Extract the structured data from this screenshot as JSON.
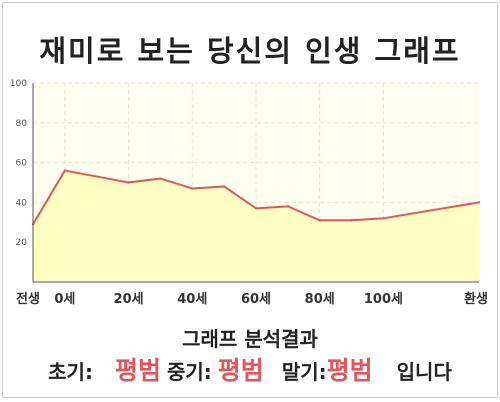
{
  "title": "재미로 보는 당신의 인생 그래프",
  "chart_data": {
    "type": "area",
    "x_labels": [
      "전생",
      "0세",
      "20세",
      "40세",
      "60세",
      "80세",
      "100세",
      "환생"
    ],
    "ylim": [
      0,
      100
    ],
    "y_ticks": [
      20,
      40,
      60,
      80,
      100
    ],
    "grid": true,
    "line_color": "#e0565b",
    "fill_color": "#ffffc4",
    "points": [
      {
        "x": "전생",
        "y": 29
      },
      {
        "x": "0세",
        "y": 56
      },
      {
        "x": "20세",
        "y": 50
      },
      {
        "x": "30세",
        "y": 52
      },
      {
        "x": "40세",
        "y": 47
      },
      {
        "x": "50세",
        "y": 48
      },
      {
        "x": "60세",
        "y": 37
      },
      {
        "x": "70세",
        "y": 38
      },
      {
        "x": "80세",
        "y": 31
      },
      {
        "x": "90세",
        "y": 31
      },
      {
        "x": "100세",
        "y": 32
      },
      {
        "x": "환생",
        "y": 40
      }
    ]
  },
  "summary": {
    "heading": "그래프 분석결과",
    "early_label": "초기:",
    "early_value": "평범",
    "middle_label": "중기:",
    "middle_value": "평범",
    "late_label": "말기:",
    "late_value": "평범",
    "ending": "입니다"
  },
  "colors": {
    "accent": "#e0565b",
    "plot_background": "#fffff0",
    "grid": "#e6e6d2"
  }
}
